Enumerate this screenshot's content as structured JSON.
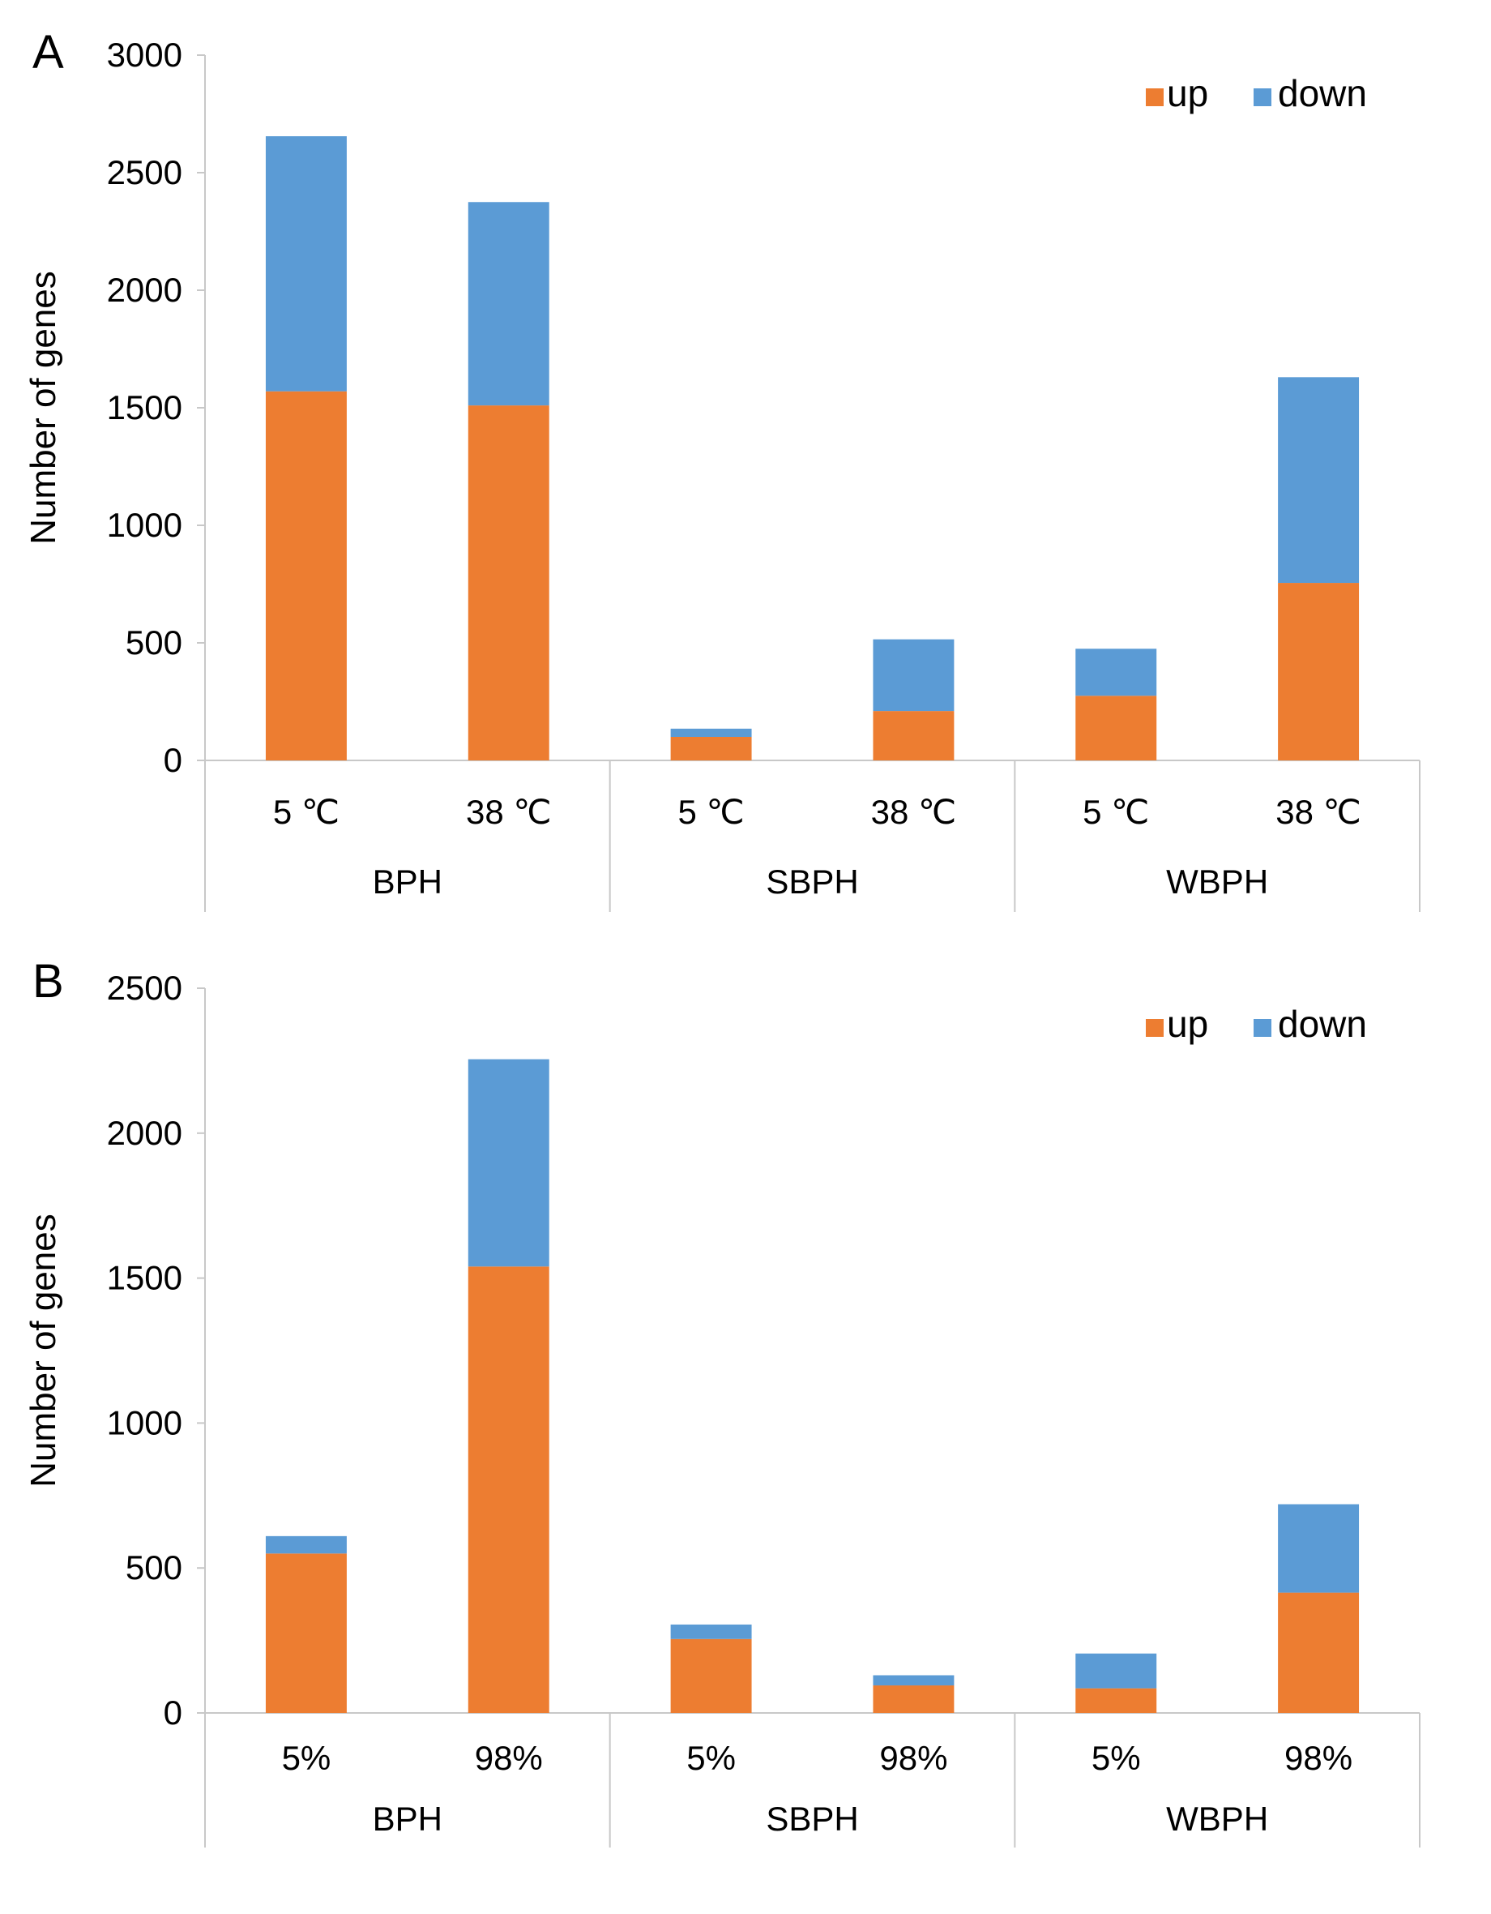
{
  "legend": {
    "up": "up",
    "down": "down"
  },
  "colors": {
    "up": "#ED7D31",
    "down": "#5B9BD5",
    "axis": "#C8C8C8",
    "text": "#000000"
  },
  "chart_data": [
    {
      "type": "bar",
      "stacked": true,
      "panel": "A",
      "title": "",
      "xlabel": "",
      "ylabel": "Number of genes",
      "ylim": [
        0,
        3000
      ],
      "yticks": [
        0,
        500,
        1000,
        1500,
        2000,
        2500,
        3000
      ],
      "groups": [
        "BPH",
        "SBPH",
        "WBPH"
      ],
      "categories": [
        "5 ℃",
        "38 ℃",
        "5 ℃",
        "38 ℃",
        "5 ℃",
        "38 ℃"
      ],
      "series": [
        {
          "name": "up",
          "values": [
            1570,
            1510,
            100,
            210,
            275,
            755
          ]
        },
        {
          "name": "down",
          "values": [
            1085,
            865,
            35,
            305,
            200,
            875
          ]
        }
      ],
      "legend_position": "top-right",
      "grid": false
    },
    {
      "type": "bar",
      "stacked": true,
      "panel": "B",
      "title": "",
      "xlabel": "",
      "ylabel": "Number of genes",
      "ylim": [
        0,
        2500
      ],
      "yticks": [
        0,
        500,
        1000,
        1500,
        2000,
        2500
      ],
      "groups": [
        "BPH",
        "SBPH",
        "WBPH"
      ],
      "categories": [
        "5%",
        "98%",
        "5%",
        "98%",
        "5%",
        "98%"
      ],
      "series": [
        {
          "name": "up",
          "values": [
            550,
            1540,
            255,
            95,
            85,
            415
          ]
        },
        {
          "name": "down",
          "values": [
            60,
            715,
            50,
            35,
            120,
            305
          ]
        }
      ],
      "legend_position": "top-right",
      "grid": false
    }
  ]
}
